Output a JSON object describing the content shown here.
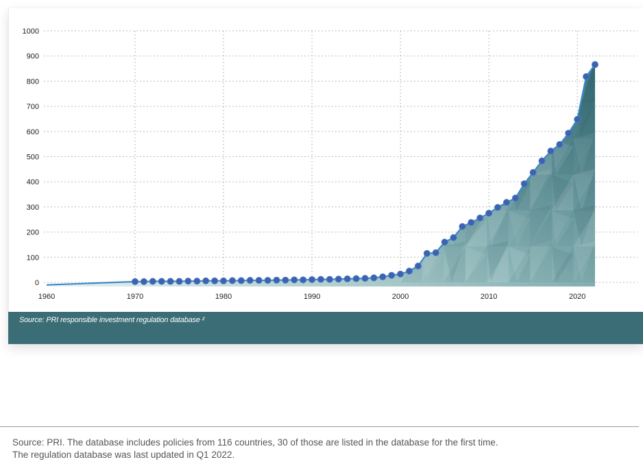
{
  "chart_data": {
    "type": "area",
    "title": "",
    "xlabel": "",
    "ylabel": "",
    "xlim": [
      1960,
      2022
    ],
    "ylim": [
      0,
      1000
    ],
    "y_ticks": [
      "0",
      "100",
      "200",
      "300",
      "400",
      "500",
      "600",
      "700",
      "800",
      "900",
      "1000"
    ],
    "x_ticks": [
      "1960",
      "1970",
      "1980",
      "1990",
      "2000",
      "2010",
      "2020"
    ],
    "grid": true,
    "legend": "none",
    "line_color": "#3a6fb5",
    "marker_color": "#3d63b0",
    "fill_color": "#3b6d77",
    "x": [
      1960,
      1970,
      1971,
      1972,
      1973,
      1974,
      1975,
      1976,
      1977,
      1978,
      1979,
      1980,
      1981,
      1982,
      1983,
      1984,
      1985,
      1986,
      1987,
      1988,
      1989,
      1990,
      1991,
      1992,
      1993,
      1994,
      1995,
      1996,
      1997,
      1998,
      1999,
      2000,
      2001,
      2002,
      2003,
      2004,
      2005,
      2006,
      2007,
      2008,
      2009,
      2010,
      2011,
      2012,
      2013,
      2014,
      2015,
      2016,
      2017,
      2018,
      2019,
      2020,
      2021,
      2022
    ],
    "y": [
      -10,
      3,
      3,
      4,
      4,
      4,
      4,
      5,
      5,
      6,
      6,
      6,
      7,
      7,
      8,
      8,
      8,
      9,
      9,
      10,
      10,
      11,
      12,
      12,
      13,
      14,
      15,
      16,
      18,
      22,
      28,
      33,
      45,
      65,
      115,
      118,
      160,
      178,
      222,
      238,
      256,
      275,
      298,
      318,
      335,
      392,
      437,
      483,
      522,
      548,
      593,
      648,
      818,
      866
    ],
    "markers_from_x": 1970
  },
  "source_band": {
    "text": "Source: PRI responsible investment regulation database ²"
  },
  "footer": {
    "line1": "Source: PRI. The database includes policies from 116 countries, 30 of those are listed in the database for the first time.",
    "line2": "The regulation database was last updated in Q1 2022."
  }
}
